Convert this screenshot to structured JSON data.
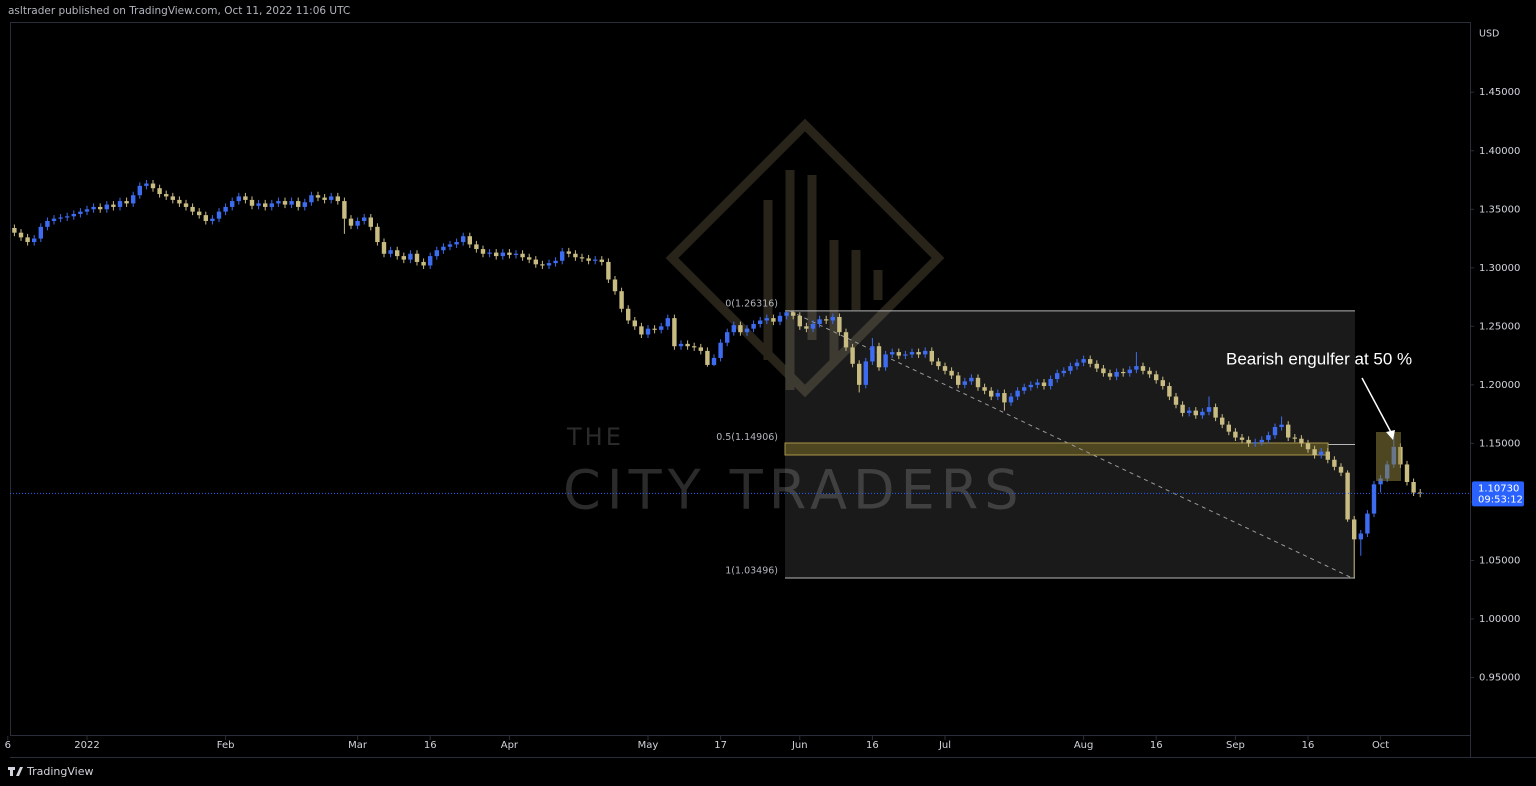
{
  "header": {
    "text": "asltrader published on TradingView.com, Oct 11, 2022 11:06 UTC"
  },
  "footer": {
    "brand": "TradingView"
  },
  "chart_data": {
    "type": "candlestick",
    "currency": "USD",
    "ylim": [
      0.9,
      1.51
    ],
    "yticks": [
      {
        "value": 1.45,
        "label": "1.45000"
      },
      {
        "value": 1.4,
        "label": "1.40000"
      },
      {
        "value": 1.35,
        "label": "1.35000"
      },
      {
        "value": 1.3,
        "label": "1.30000"
      },
      {
        "value": 1.25,
        "label": "1.25000"
      },
      {
        "value": 1.2,
        "label": "1.20000"
      },
      {
        "value": 1.15,
        "label": "1.15000"
      },
      {
        "value": 1.1,
        "label": "1.10000"
      },
      {
        "value": 1.05,
        "label": "1.05000"
      },
      {
        "value": 1.0,
        "label": "1.00000"
      },
      {
        "value": 0.95,
        "label": "0.95000"
      }
    ],
    "xticks": [
      {
        "value": -1,
        "label": "6"
      },
      {
        "value": 11,
        "label": "2022"
      },
      {
        "value": 32,
        "label": "Feb"
      },
      {
        "value": 52,
        "label": "Mar"
      },
      {
        "value": 63,
        "label": "16"
      },
      {
        "value": 75,
        "label": "Apr"
      },
      {
        "value": 96,
        "label": "May"
      },
      {
        "value": 107,
        "label": "17"
      },
      {
        "value": 119,
        "label": "Jun"
      },
      {
        "value": 130,
        "label": "16"
      },
      {
        "value": 141,
        "label": "Jul"
      },
      {
        "value": 162,
        "label": "Aug"
      },
      {
        "value": 173,
        "label": "16"
      },
      {
        "value": 185,
        "label": "Sep"
      },
      {
        "value": 196,
        "label": "16"
      },
      {
        "value": 207,
        "label": "Oct"
      }
    ],
    "up_color": "#3d6cf0",
    "down_color": "#c9bc82",
    "candles": [
      [
        1.334,
        1.337,
        1.327,
        1.33
      ],
      [
        1.33,
        1.333,
        1.323,
        1.326
      ],
      [
        1.326,
        1.329,
        1.319,
        1.322
      ],
      [
        1.322,
        1.328,
        1.319,
        1.325
      ],
      [
        1.325,
        1.338,
        1.322,
        1.335
      ],
      [
        1.335,
        1.343,
        1.332,
        1.34
      ],
      [
        1.34,
        1.345,
        1.337,
        1.342
      ],
      [
        1.342,
        1.346,
        1.339,
        1.343
      ],
      [
        1.343,
        1.347,
        1.34,
        1.344
      ],
      [
        1.344,
        1.349,
        1.341,
        1.346
      ],
      [
        1.346,
        1.351,
        1.343,
        1.348
      ],
      [
        1.348,
        1.353,
        1.345,
        1.35
      ],
      [
        1.35,
        1.355,
        1.347,
        1.352
      ],
      [
        1.352,
        1.355,
        1.347,
        1.35
      ],
      [
        1.35,
        1.357,
        1.347,
        1.354
      ],
      [
        1.354,
        1.357,
        1.349,
        1.352
      ],
      [
        1.352,
        1.36,
        1.349,
        1.357
      ],
      [
        1.357,
        1.36,
        1.352,
        1.355
      ],
      [
        1.355,
        1.365,
        1.352,
        1.362
      ],
      [
        1.362,
        1.373,
        1.359,
        1.37
      ],
      [
        1.37,
        1.375,
        1.367,
        1.372
      ],
      [
        1.372,
        1.375,
        1.365,
        1.368
      ],
      [
        1.368,
        1.371,
        1.36,
        1.363
      ],
      [
        1.363,
        1.366,
        1.358,
        1.361
      ],
      [
        1.361,
        1.364,
        1.355,
        1.358
      ],
      [
        1.358,
        1.361,
        1.352,
        1.355
      ],
      [
        1.355,
        1.358,
        1.349,
        1.352
      ],
      [
        1.352,
        1.355,
        1.345,
        1.348
      ],
      [
        1.348,
        1.351,
        1.342,
        1.345
      ],
      [
        1.345,
        1.348,
        1.337,
        1.34
      ],
      [
        1.34,
        1.345,
        1.337,
        1.342
      ],
      [
        1.342,
        1.351,
        1.339,
        1.348
      ],
      [
        1.348,
        1.355,
        1.345,
        1.352
      ],
      [
        1.352,
        1.36,
        1.349,
        1.357
      ],
      [
        1.357,
        1.364,
        1.354,
        1.361
      ],
      [
        1.361,
        1.364,
        1.355,
        1.358
      ],
      [
        1.358,
        1.361,
        1.35,
        1.353
      ],
      [
        1.353,
        1.358,
        1.35,
        1.355
      ],
      [
        1.355,
        1.358,
        1.349,
        1.352
      ],
      [
        1.352,
        1.358,
        1.349,
        1.355
      ],
      [
        1.355,
        1.36,
        1.352,
        1.357
      ],
      [
        1.357,
        1.36,
        1.351,
        1.354
      ],
      [
        1.354,
        1.36,
        1.351,
        1.357
      ],
      [
        1.357,
        1.36,
        1.349,
        1.352
      ],
      [
        1.352,
        1.359,
        1.349,
        1.356
      ],
      [
        1.356,
        1.365,
        1.353,
        1.362
      ],
      [
        1.362,
        1.365,
        1.357,
        1.36
      ],
      [
        1.36,
        1.363,
        1.355,
        1.358
      ],
      [
        1.358,
        1.364,
        1.355,
        1.361
      ],
      [
        1.361,
        1.364,
        1.354,
        1.357
      ],
      [
        1.357,
        1.36,
        1.329,
        1.342
      ],
      [
        1.342,
        1.345,
        1.333,
        1.336
      ],
      [
        1.336,
        1.343,
        1.333,
        1.34
      ],
      [
        1.34,
        1.346,
        1.337,
        1.343
      ],
      [
        1.343,
        1.346,
        1.332,
        1.335
      ],
      [
        1.335,
        1.338,
        1.319,
        1.322
      ],
      [
        1.322,
        1.325,
        1.309,
        1.312
      ],
      [
        1.312,
        1.318,
        1.309,
        1.315
      ],
      [
        1.315,
        1.318,
        1.307,
        1.31
      ],
      [
        1.31,
        1.313,
        1.304,
        1.307
      ],
      [
        1.307,
        1.315,
        1.304,
        1.312
      ],
      [
        1.312,
        1.315,
        1.302,
        1.305
      ],
      [
        1.305,
        1.308,
        1.299,
        1.302
      ],
      [
        1.302,
        1.313,
        1.299,
        1.31
      ],
      [
        1.31,
        1.318,
        1.307,
        1.315
      ],
      [
        1.315,
        1.321,
        1.312,
        1.318
      ],
      [
        1.318,
        1.323,
        1.315,
        1.32
      ],
      [
        1.32,
        1.325,
        1.317,
        1.322
      ],
      [
        1.322,
        1.33,
        1.319,
        1.327
      ],
      [
        1.327,
        1.33,
        1.317,
        1.32
      ],
      [
        1.32,
        1.323,
        1.313,
        1.316
      ],
      [
        1.316,
        1.319,
        1.309,
        1.312
      ],
      [
        1.312,
        1.316,
        1.309,
        1.313
      ],
      [
        1.313,
        1.316,
        1.307,
        1.31
      ],
      [
        1.31,
        1.316,
        1.307,
        1.313
      ],
      [
        1.313,
        1.316,
        1.308,
        1.311
      ],
      [
        1.311,
        1.315,
        1.308,
        1.312
      ],
      [
        1.312,
        1.315,
        1.306,
        1.309
      ],
      [
        1.309,
        1.312,
        1.304,
        1.307
      ],
      [
        1.307,
        1.31,
        1.3,
        1.303
      ],
      [
        1.303,
        1.306,
        1.299,
        1.302
      ],
      [
        1.302,
        1.307,
        1.299,
        1.304
      ],
      [
        1.304,
        1.309,
        1.301,
        1.306
      ],
      [
        1.306,
        1.317,
        1.303,
        1.314
      ],
      [
        1.314,
        1.317,
        1.309,
        1.312
      ],
      [
        1.312,
        1.315,
        1.306,
        1.309
      ],
      [
        1.309,
        1.312,
        1.305,
        1.308
      ],
      [
        1.308,
        1.311,
        1.303,
        1.306
      ],
      [
        1.306,
        1.31,
        1.303,
        1.307
      ],
      [
        1.307,
        1.31,
        1.302,
        1.305
      ],
      [
        1.305,
        1.308,
        1.287,
        1.29
      ],
      [
        1.29,
        1.293,
        1.277,
        1.28
      ],
      [
        1.28,
        1.283,
        1.262,
        1.265
      ],
      [
        1.265,
        1.268,
        1.252,
        1.255
      ],
      [
        1.255,
        1.258,
        1.247,
        1.25
      ],
      [
        1.25,
        1.253,
        1.24,
        1.243
      ],
      [
        1.243,
        1.251,
        1.24,
        1.248
      ],
      [
        1.248,
        1.251,
        1.244,
        1.247
      ],
      [
        1.247,
        1.253,
        1.244,
        1.25
      ],
      [
        1.25,
        1.26,
        1.247,
        1.257
      ],
      [
        1.257,
        1.26,
        1.23,
        1.233
      ],
      [
        1.233,
        1.238,
        1.23,
        1.235
      ],
      [
        1.235,
        1.238,
        1.23,
        1.233
      ],
      [
        1.233,
        1.236,
        1.229,
        1.232
      ],
      [
        1.232,
        1.235,
        1.226,
        1.229
      ],
      [
        1.229,
        1.232,
        1.2155,
        1.217
      ],
      [
        1.217,
        1.226,
        1.216,
        1.223
      ],
      [
        1.223,
        1.239,
        1.22,
        1.236
      ],
      [
        1.236,
        1.248,
        1.233,
        1.245
      ],
      [
        1.245,
        1.254,
        1.242,
        1.251
      ],
      [
        1.251,
        1.254,
        1.242,
        1.245
      ],
      [
        1.245,
        1.251,
        1.242,
        1.248
      ],
      [
        1.248,
        1.255,
        1.245,
        1.252
      ],
      [
        1.252,
        1.258,
        1.249,
        1.255
      ],
      [
        1.255,
        1.26,
        1.252,
        1.257
      ],
      [
        1.257,
        1.26,
        1.251,
        1.254
      ],
      [
        1.254,
        1.262,
        1.251,
        1.259
      ],
      [
        1.259,
        1.26316,
        1.256,
        1.262
      ],
      [
        1.262,
        1.263,
        1.256,
        1.259
      ],
      [
        1.259,
        1.262,
        1.247,
        1.25
      ],
      [
        1.25,
        1.253,
        1.245,
        1.248
      ],
      [
        1.248,
        1.255,
        1.245,
        1.252
      ],
      [
        1.252,
        1.259,
        1.249,
        1.256
      ],
      [
        1.256,
        1.259,
        1.252,
        1.255
      ],
      [
        1.255,
        1.261,
        1.252,
        1.258
      ],
      [
        1.258,
        1.261,
        1.242,
        1.245
      ],
      [
        1.245,
        1.248,
        1.229,
        1.232
      ],
      [
        1.232,
        1.235,
        1.215,
        1.218
      ],
      [
        1.218,
        1.221,
        1.1935,
        1.2
      ],
      [
        1.2,
        1.223,
        1.197,
        1.22
      ],
      [
        1.22,
        1.24,
        1.217,
        1.233
      ],
      [
        1.233,
        1.236,
        1.212,
        1.215
      ],
      [
        1.215,
        1.229,
        1.212,
        1.226
      ],
      [
        1.226,
        1.231,
        1.223,
        1.228
      ],
      [
        1.228,
        1.231,
        1.222,
        1.225
      ],
      [
        1.225,
        1.229,
        1.222,
        1.226
      ],
      [
        1.226,
        1.231,
        1.223,
        1.228
      ],
      [
        1.228,
        1.231,
        1.223,
        1.226
      ],
      [
        1.226,
        1.232,
        1.223,
        1.229
      ],
      [
        1.229,
        1.232,
        1.217,
        1.22
      ],
      [
        1.22,
        1.223,
        1.213,
        1.216
      ],
      [
        1.216,
        1.219,
        1.209,
        1.212
      ],
      [
        1.212,
        1.215,
        1.205,
        1.208
      ],
      [
        1.208,
        1.211,
        1.197,
        1.2
      ],
      [
        1.2,
        1.206,
        1.197,
        1.203
      ],
      [
        1.203,
        1.209,
        1.2,
        1.206
      ],
      [
        1.206,
        1.209,
        1.195,
        1.198
      ],
      [
        1.198,
        1.201,
        1.192,
        1.195
      ],
      [
        1.195,
        1.198,
        1.187,
        1.19
      ],
      [
        1.19,
        1.196,
        1.187,
        1.193
      ],
      [
        1.193,
        1.196,
        1.178,
        1.185
      ],
      [
        1.185,
        1.193,
        1.182,
        1.19
      ],
      [
        1.19,
        1.198,
        1.187,
        1.195
      ],
      [
        1.195,
        1.201,
        1.192,
        1.198
      ],
      [
        1.198,
        1.203,
        1.195,
        1.2
      ],
      [
        1.2,
        1.205,
        1.197,
        1.202
      ],
      [
        1.202,
        1.205,
        1.196,
        1.199
      ],
      [
        1.199,
        1.208,
        1.196,
        1.205
      ],
      [
        1.205,
        1.213,
        1.202,
        1.21
      ],
      [
        1.21,
        1.215,
        1.207,
        1.212
      ],
      [
        1.212,
        1.219,
        1.209,
        1.216
      ],
      [
        1.216,
        1.222,
        1.213,
        1.219
      ],
      [
        1.219,
        1.225,
        1.216,
        1.222
      ],
      [
        1.222,
        1.225,
        1.215,
        1.218
      ],
      [
        1.218,
        1.221,
        1.211,
        1.214
      ],
      [
        1.214,
        1.217,
        1.207,
        1.21
      ],
      [
        1.21,
        1.213,
        1.204,
        1.207
      ],
      [
        1.207,
        1.214,
        1.204,
        1.211
      ],
      [
        1.211,
        1.214,
        1.207,
        1.21
      ],
      [
        1.21,
        1.216,
        1.207,
        1.213
      ],
      [
        1.213,
        1.228,
        1.21,
        1.216
      ],
      [
        1.216,
        1.219,
        1.209,
        1.212
      ],
      [
        1.212,
        1.215,
        1.206,
        1.209
      ],
      [
        1.209,
        1.212,
        1.201,
        1.204
      ],
      [
        1.204,
        1.207,
        1.196,
        1.199
      ],
      [
        1.199,
        1.202,
        1.187,
        1.19
      ],
      [
        1.19,
        1.193,
        1.18,
        1.183
      ],
      [
        1.183,
        1.186,
        1.173,
        1.176
      ],
      [
        1.176,
        1.181,
        1.173,
        1.178
      ],
      [
        1.178,
        1.181,
        1.171,
        1.174
      ],
      [
        1.174,
        1.18,
        1.171,
        1.177
      ],
      [
        1.177,
        1.19,
        1.174,
        1.181
      ],
      [
        1.181,
        1.184,
        1.169,
        1.172
      ],
      [
        1.172,
        1.175,
        1.163,
        1.166
      ],
      [
        1.166,
        1.169,
        1.157,
        1.16
      ],
      [
        1.16,
        1.163,
        1.152,
        1.155
      ],
      [
        1.155,
        1.158,
        1.15,
        1.153
      ],
      [
        1.153,
        1.156,
        1.147,
        1.15
      ],
      [
        1.15,
        1.154,
        1.147,
        1.151
      ],
      [
        1.151,
        1.156,
        1.148,
        1.153
      ],
      [
        1.153,
        1.16,
        1.15,
        1.157
      ],
      [
        1.157,
        1.167,
        1.154,
        1.164
      ],
      [
        1.164,
        1.173,
        1.161,
        1.166
      ],
      [
        1.166,
        1.169,
        1.152,
        1.155
      ],
      [
        1.155,
        1.158,
        1.151,
        1.154
      ],
      [
        1.154,
        1.157,
        1.147,
        1.15
      ],
      [
        1.15,
        1.153,
        1.142,
        1.145
      ],
      [
        1.145,
        1.148,
        1.137,
        1.14
      ],
      [
        1.14,
        1.146,
        1.137,
        1.143
      ],
      [
        1.143,
        1.146,
        1.133,
        1.136
      ],
      [
        1.136,
        1.139,
        1.127,
        1.13
      ],
      [
        1.13,
        1.133,
        1.122,
        1.125
      ],
      [
        1.125,
        1.127,
        1.083,
        1.085
      ],
      [
        1.085,
        1.088,
        1.03496,
        1.068
      ],
      [
        1.068,
        1.076,
        1.054,
        1.073
      ],
      [
        1.073,
        1.093,
        1.07,
        1.09
      ],
      [
        1.09,
        1.118,
        1.087,
        1.115
      ],
      [
        1.115,
        1.123,
        1.108,
        1.12
      ],
      [
        1.12,
        1.135,
        1.117,
        1.132
      ],
      [
        1.132,
        1.16,
        1.129,
        1.147
      ],
      [
        1.147,
        1.15,
        1.129,
        1.132
      ],
      [
        1.132,
        1.135,
        1.114,
        1.117
      ],
      [
        1.117,
        1.12,
        1.105,
        1.108
      ],
      [
        1.108,
        1.111,
        1.104,
        1.1073
      ]
    ],
    "last_price": {
      "value": 1.1073,
      "label": "1.10730"
    },
    "countdown": "09:53:12",
    "fib_levels": [
      {
        "value": 1.26316,
        "label": "0(1.26316)"
      },
      {
        "value": 1.14906,
        "label": "0.5(1.14906)"
      },
      {
        "value": 1.03496,
        "label": "1(1.03496)"
      }
    ],
    "annotation": "Bearish engulfer at 50 %",
    "watermark": [
      "THE",
      "CITY TRADERS"
    ]
  }
}
